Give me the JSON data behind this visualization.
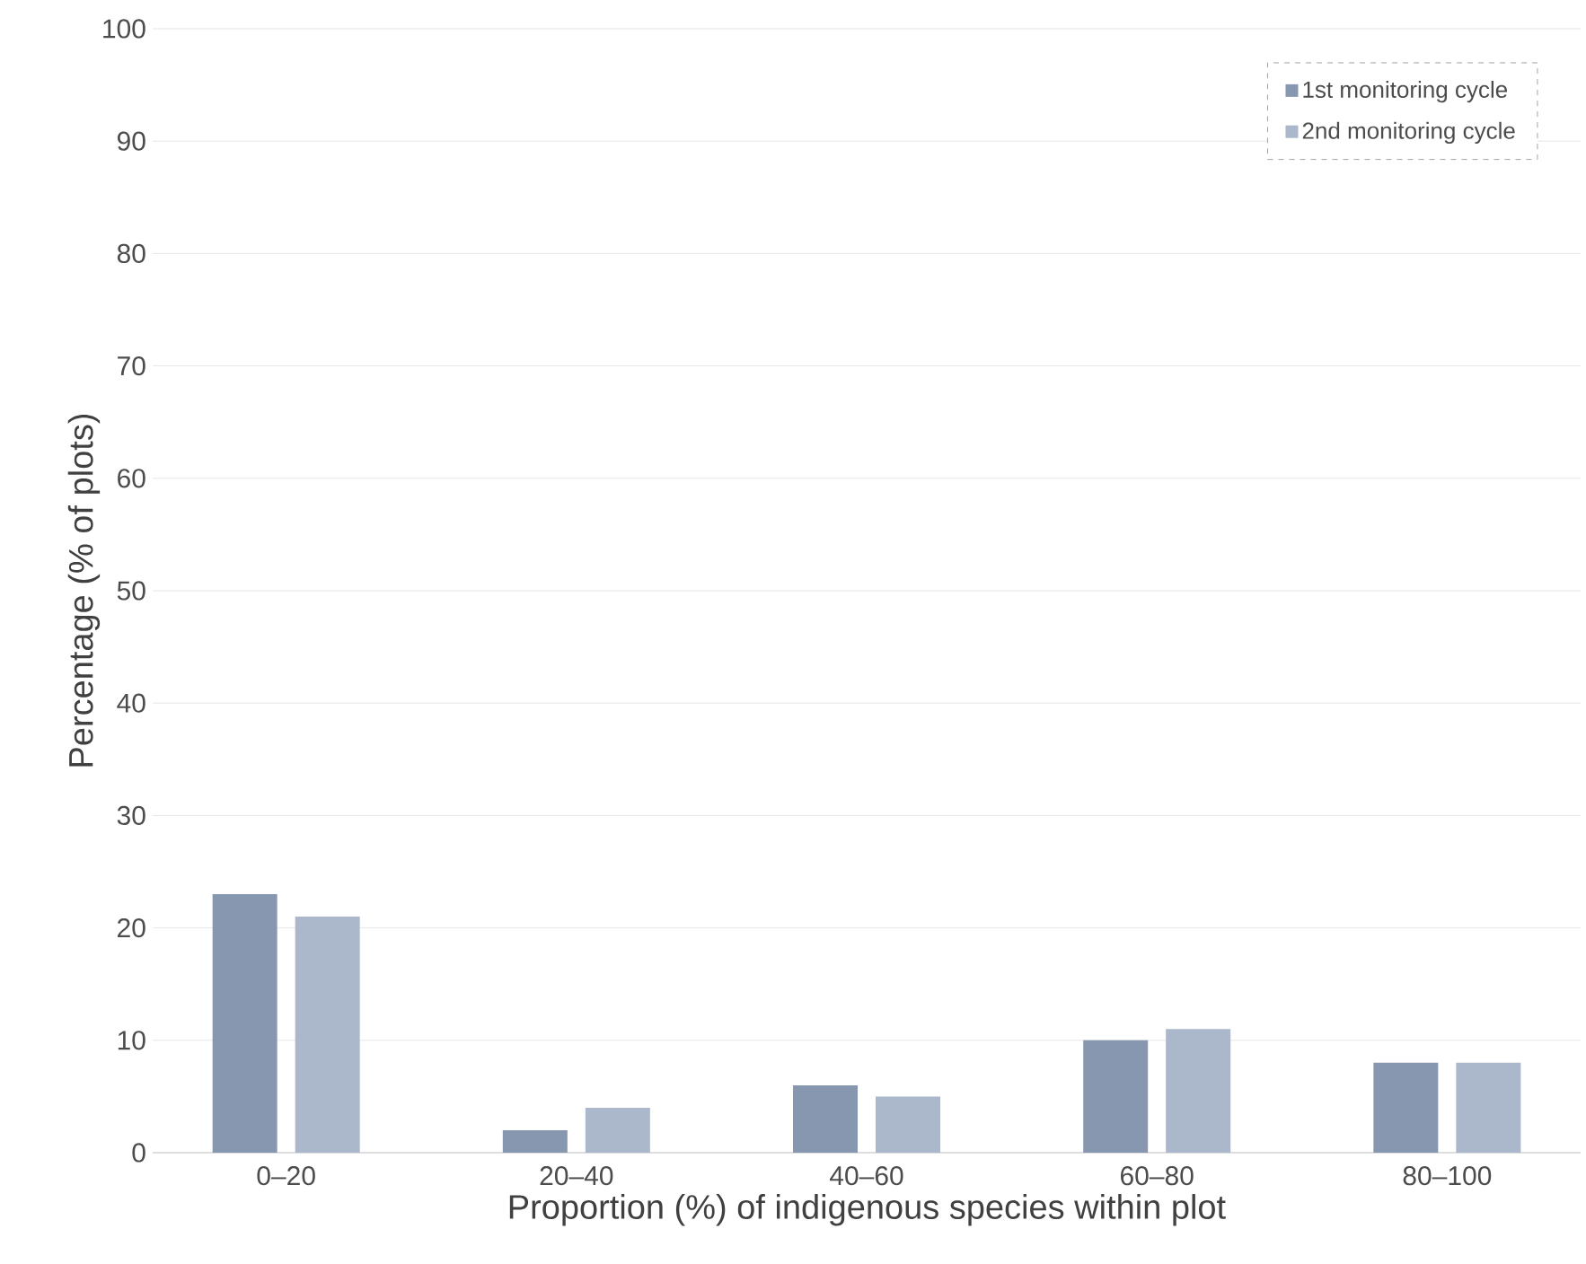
{
  "chart_data": {
    "type": "bar",
    "xlabel": "Proportion (%) of indigenous species within plot",
    "ylabel": "Percentage (% of plots)",
    "categories": [
      "0–20",
      "20–40",
      "40–60",
      "60–80",
      "80–100"
    ],
    "series": [
      {
        "name": "1st monitoring cycle",
        "color": "#8897b0",
        "values": [
          23,
          2,
          6,
          10,
          8
        ]
      },
      {
        "name": "2nd monitoring cycle",
        "color": "#abb7ca",
        "values": [
          21,
          4,
          5,
          11,
          8
        ]
      }
    ],
    "ylim": [
      0,
      100
    ],
    "yticks": [
      0,
      10,
      20,
      30,
      40,
      50,
      60,
      70,
      80,
      90,
      100
    ],
    "grid": "y",
    "legend": "top right"
  }
}
